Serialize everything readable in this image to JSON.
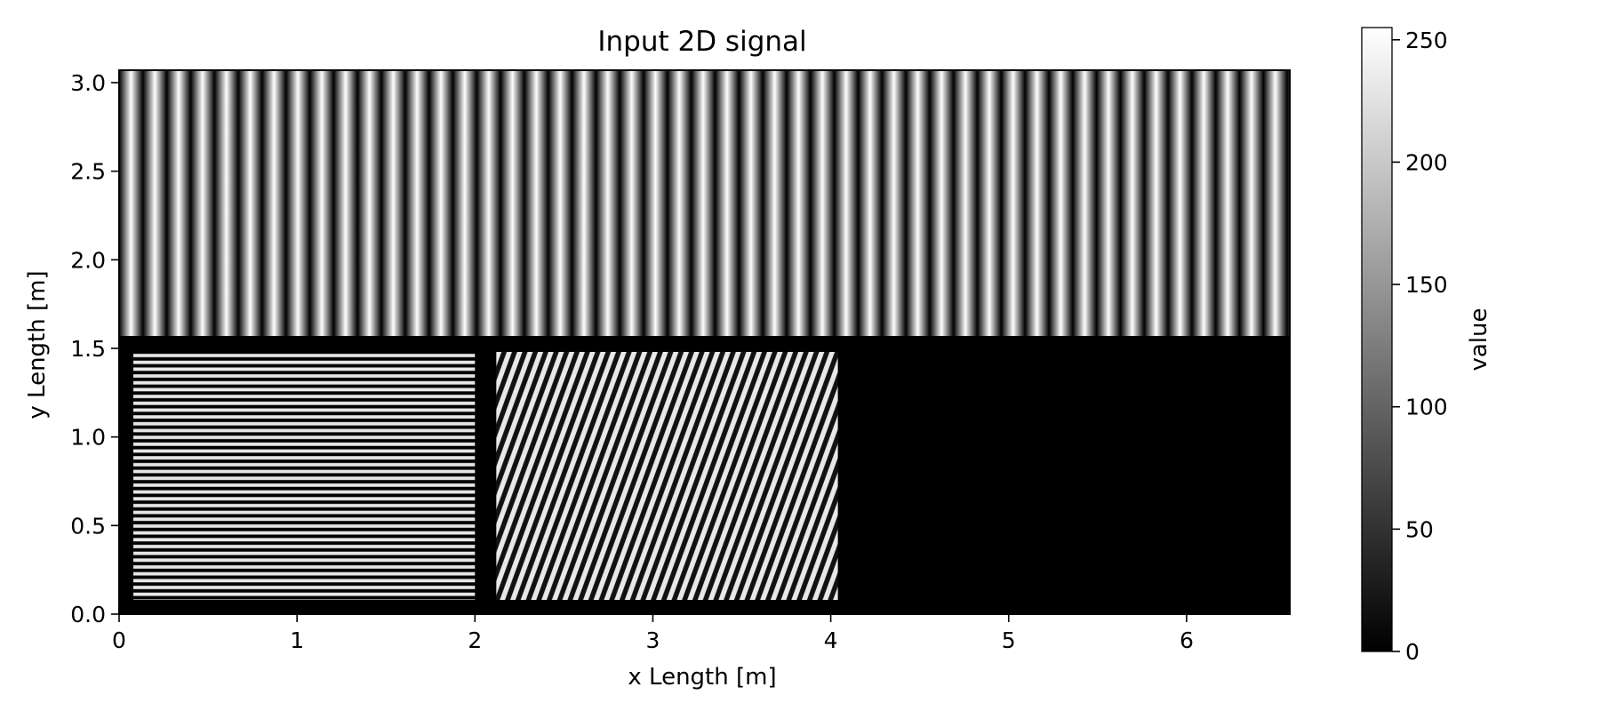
{
  "chart_data": {
    "type": "heatmap",
    "title": "Input 2D signal",
    "xlabel": "x Length [m]",
    "ylabel": "y Length [m]",
    "xlim": [
      0,
      6.58
    ],
    "ylim": [
      0,
      3.07
    ],
    "x_ticks": [
      "0",
      "1",
      "2",
      "3",
      "4",
      "5",
      "6"
    ],
    "y_ticks": [
      "0.0",
      "0.5",
      "1.0",
      "1.5",
      "2.0",
      "2.5",
      "3.0"
    ],
    "x_tick_values": [
      0,
      1,
      2,
      3,
      4,
      5,
      6
    ],
    "y_tick_values": [
      0.0,
      0.5,
      1.0,
      1.5,
      2.0,
      2.5,
      3.0
    ],
    "colormap": "gray",
    "background_value": 0,
    "colorbar": {
      "label": "value",
      "range": [
        0,
        255
      ],
      "ticks": [
        "0",
        "50",
        "100",
        "150",
        "200",
        "250"
      ],
      "tick_values": [
        0,
        50,
        100,
        150,
        200,
        250
      ]
    },
    "regions": [
      {
        "name": "vertical stripes",
        "x": [
          0,
          6.58
        ],
        "y": [
          1.57,
          3.07
        ],
        "orientation": "vertical",
        "period_m": 0.134,
        "min": 0,
        "max": 255
      },
      {
        "name": "horizontal stripes",
        "x": [
          0.08,
          2.0
        ],
        "y": [
          0.08,
          1.48
        ],
        "orientation": "horizontal",
        "period_m": 0.0385,
        "min": 0,
        "max": 255
      },
      {
        "name": "diagonal stripes",
        "x": [
          2.12,
          4.04
        ],
        "y": [
          0.08,
          1.48
        ],
        "orientation": "diagonal",
        "period_m": 0.055,
        "min": 0,
        "max": 255
      }
    ]
  }
}
